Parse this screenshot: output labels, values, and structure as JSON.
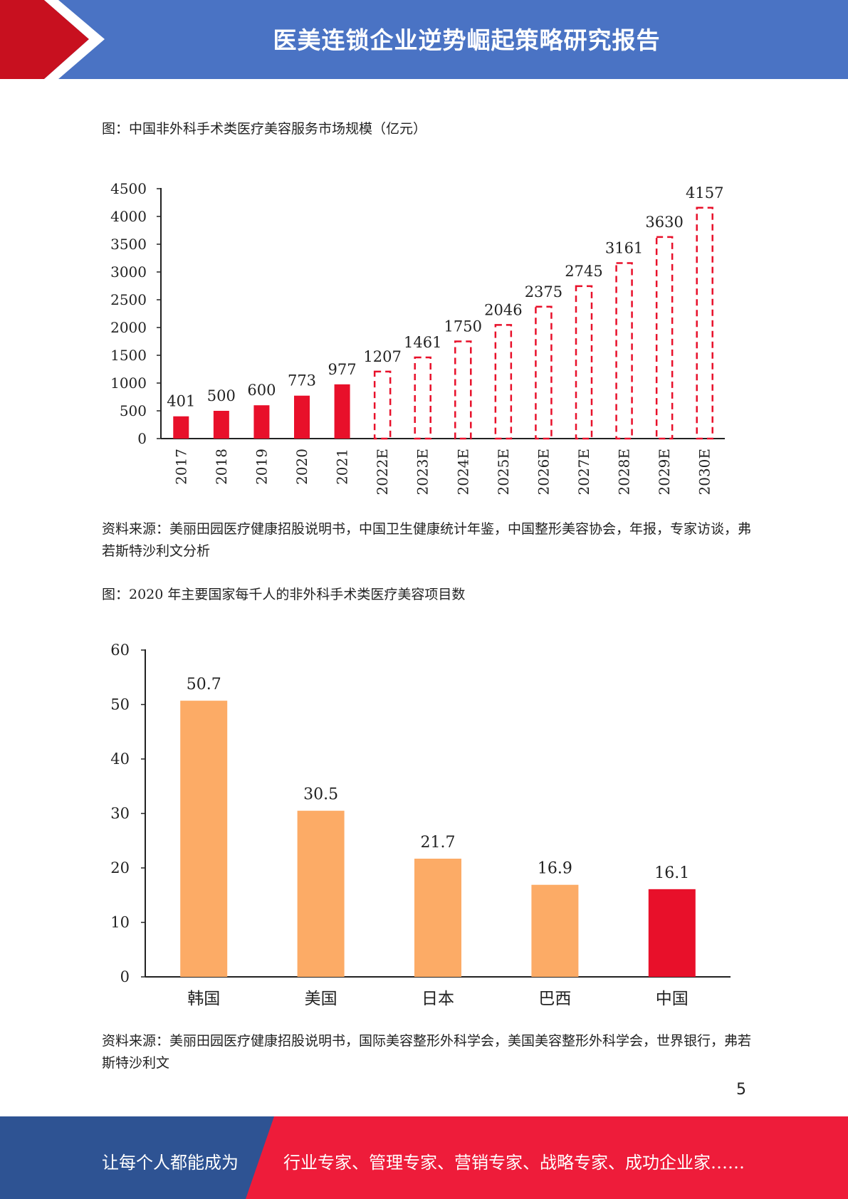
{
  "header": {
    "title": "医美连锁企业逆势崛起策略研究报告"
  },
  "figure1": {
    "caption": "图：中国非外科手术类医疗美容服务市场规模（亿元）",
    "source": "资料来源：美丽田园医疗健康招股说明书，中国卫生健康统计年鉴，中国整形美容协会，年报，专家访谈，弗若斯特沙利文分析"
  },
  "figure2": {
    "caption": "图：2020 年主要国家每千人的非外科手术类医疗美容项目数",
    "source": "资料来源：美丽田园医疗健康招股说明书，国际美容整形外科学会，美国美容整形外科学会，世界银行，弗若斯特沙利文"
  },
  "page_number": "5",
  "footer": {
    "left": "让每个人都能成为",
    "right": "行业专家、管理专家、营销专家、战略专家、成功企业家……"
  },
  "colors": {
    "header_blue": "#4a73c4",
    "brand_red": "#e8102a",
    "forecast_red": "#e8102a",
    "orange": "#fcab66",
    "footer_blue": "#2e5393",
    "footer_red": "#ee1c3a"
  },
  "chart_data": [
    {
      "type": "bar",
      "categories": [
        "2017",
        "2018",
        "2019",
        "2020",
        "2021",
        "2022E",
        "2023E",
        "2024E",
        "2025E",
        "2026E",
        "2027E",
        "2028E",
        "2029E",
        "2030E"
      ],
      "values": [
        401,
        500,
        600,
        773,
        977,
        1207,
        1461,
        1750,
        2046,
        2375,
        2745,
        3161,
        3630,
        4157
      ],
      "forecast_from_index": 5,
      "ylim": [
        0,
        4500
      ],
      "yticks": [
        0,
        500,
        1000,
        1500,
        2000,
        2500,
        3000,
        3500,
        4000,
        4500
      ],
      "data_labels": true,
      "grid": false,
      "style": {
        "actual": "solid red",
        "forecast": "dashed red outline"
      }
    },
    {
      "type": "bar",
      "categories": [
        "韩国",
        "美国",
        "日本",
        "巴西",
        "中国"
      ],
      "values": [
        50.7,
        30.5,
        21.7,
        16.9,
        16.1
      ],
      "highlight_index": 4,
      "ylim": [
        0,
        60
      ],
      "yticks": [
        0,
        10,
        20,
        30,
        40,
        50,
        60
      ],
      "data_labels": true,
      "grid": false
    }
  ]
}
